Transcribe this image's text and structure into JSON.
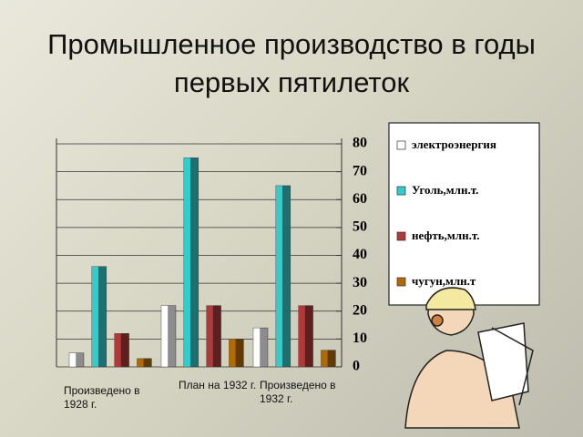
{
  "chart_data": {
    "type": "bar",
    "title": "Промышленное производство в годы первых пятилеток",
    "categories": [
      "Произведено в 1928 г.",
      "План на 1932 г.",
      "Произведено в 1932 г."
    ],
    "series": [
      {
        "name": "электроэнергия",
        "color": "#ffffff",
        "values": [
          5,
          22,
          14
        ]
      },
      {
        "name": "Уголь,млн.т.",
        "color": "#33cccc",
        "values": [
          36,
          75,
          65
        ]
      },
      {
        "name": "нефть,млн.т.",
        "color": "#b03a3a",
        "values": [
          12,
          22,
          22
        ]
      },
      {
        "name": "чугун,млн.т",
        "color": "#b06a00",
        "values": [
          3,
          10,
          6
        ]
      }
    ],
    "ylim": [
      0,
      80
    ],
    "yticks": [
      0,
      10,
      20,
      30,
      40,
      50,
      60,
      70,
      80
    ],
    "grid": true
  }
}
